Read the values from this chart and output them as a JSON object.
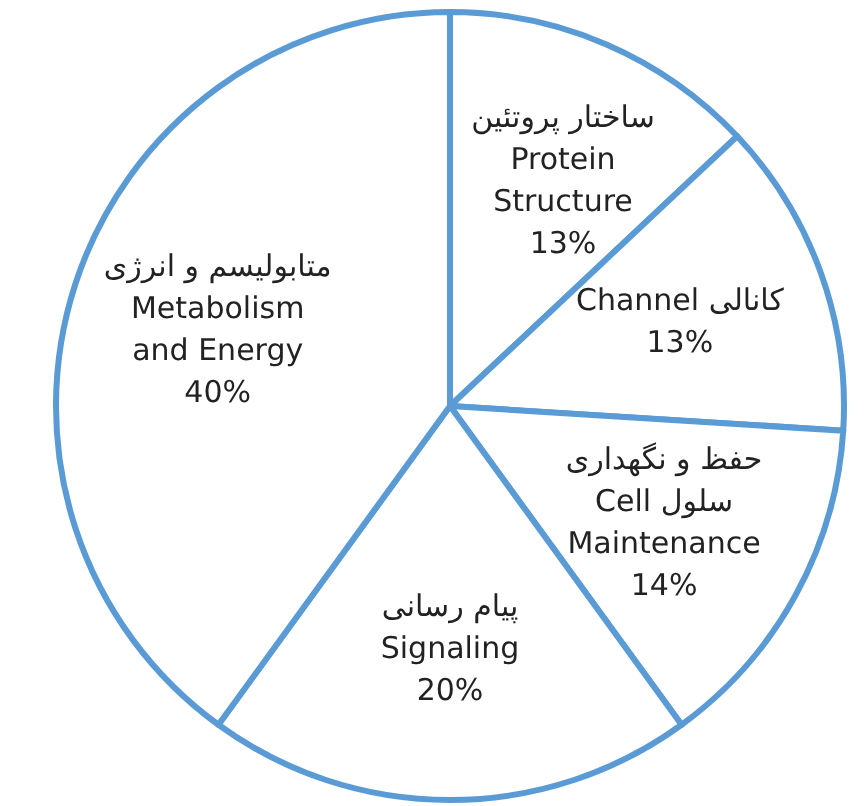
{
  "chart_data": {
    "type": "pie",
    "categories": [
      "ساختار پروتئین\nProtein\nStructure",
      "Channel کانالی",
      "حفظ و نگهداری\nCell  سلول\nMaintenance",
      "پیام رسانی\nSignaling",
      "متابولیسم و انرژی\nMetabolism\nand Energy"
    ],
    "values": [
      13,
      13,
      14,
      20,
      40
    ],
    "colors": [
      "#ffffff",
      "#ffffff",
      "#ffffff",
      "#ffffff",
      "#ffffff"
    ],
    "value_labels": [
      "13%",
      "13%",
      "14%",
      "20%",
      "40%"
    ]
  }
}
